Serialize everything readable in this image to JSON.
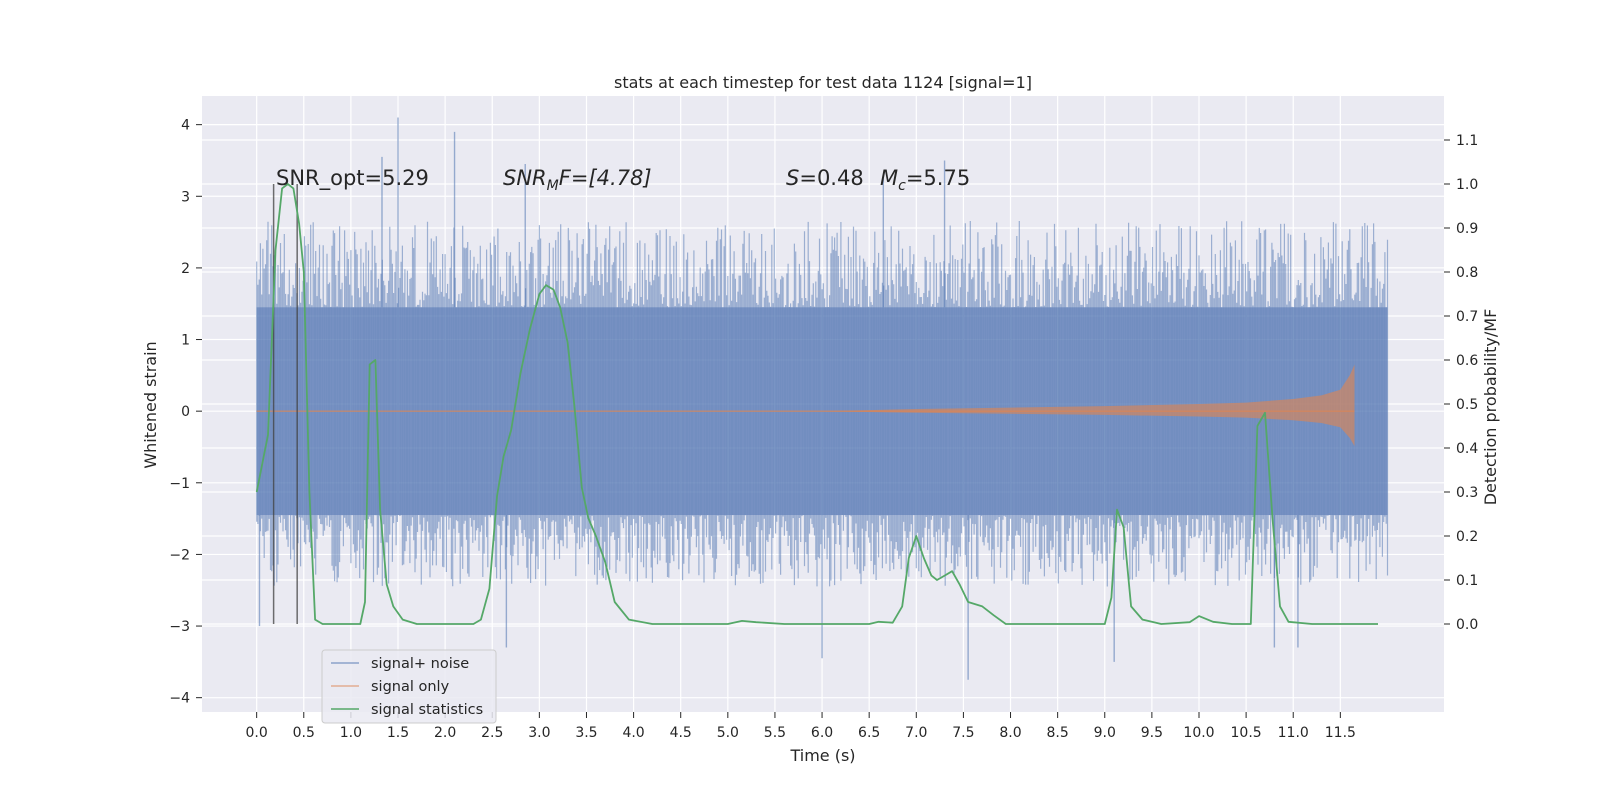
{
  "chart_data": {
    "type": "line",
    "title": "stats at each timestep for test data 1124 [signal=1]",
    "xlabel": "Time (s)",
    "ylabel": "Whitened strain",
    "ylabel_right": "Detection probability/MF",
    "xlim": [
      -0.58,
      12.6
    ],
    "ylim": [
      -4.2,
      4.4
    ],
    "ylim_right": [
      -0.2,
      1.2
    ],
    "xticks": [
      "0.0",
      "0.5",
      "1.0",
      "1.5",
      "2.0",
      "2.5",
      "3.0",
      "3.5",
      "4.0",
      "4.5",
      "5.0",
      "5.5",
      "6.0",
      "6.5",
      "7.0",
      "7.5",
      "8.0",
      "8.5",
      "9.0",
      "9.5",
      "10.0",
      "10.5",
      "11.0",
      "11.5"
    ],
    "yticks": [
      "4",
      "3",
      "2",
      "1",
      "0",
      "−1",
      "−2",
      "−3",
      "−4"
    ],
    "yticks_right": [
      "1.1",
      "1.0",
      "0.9",
      "0.8",
      "0.7",
      "0.6",
      "0.5",
      "0.4",
      "0.3",
      "0.2",
      "0.1",
      "0.0"
    ],
    "grid": true,
    "legend_position": "lower-left",
    "annotations": {
      "snr_opt": "SNR_opt=5.29",
      "snr_mf": "SNR",
      "snr_mf_sub": "M",
      "snr_mf_tail": "F=[4.78]",
      "s_label": "S",
      "s_value": "=0.48",
      "mc_label": "M",
      "mc_sub": "c",
      "mc_value": "=5.75"
    },
    "markers_x": [
      0.18,
      0.43
    ],
    "series": [
      {
        "name": "signal+ noise",
        "color": "#4c72b0",
        "x_range": [
          0.0,
          12.0
        ],
        "band_core": [
          -1.45,
          1.45
        ],
        "typical_extremes": [
          -2.4,
          2.6
        ],
        "notable_peaks": [
          {
            "x": 1.5,
            "y": 4.1
          },
          {
            "x": 1.33,
            "y": 3.55
          },
          {
            "x": 2.1,
            "y": 3.9
          },
          {
            "x": 2.85,
            "y": 3.45
          },
          {
            "x": 7.3,
            "y": 3.5
          },
          {
            "x": 6.65,
            "y": 3.25
          },
          {
            "x": 2.65,
            "y": -3.3
          },
          {
            "x": 7.55,
            "y": -3.75
          },
          {
            "x": 6.0,
            "y": -3.45
          },
          {
            "x": 9.1,
            "y": -3.5
          },
          {
            "x": 0.03,
            "y": -3.0
          },
          {
            "x": 10.8,
            "y": -3.3
          },
          {
            "x": 11.05,
            "y": -3.3
          }
        ]
      },
      {
        "name": "signal only",
        "color": "#dd8452",
        "x_range": [
          0.0,
          11.65
        ],
        "envelope": [
          {
            "x": 0.0,
            "y": 0.0
          },
          {
            "x": 5.0,
            "y": 0.0
          },
          {
            "x": 6.0,
            "y": 0.0
          },
          {
            "x": 7.0,
            "y": 0.03
          },
          {
            "x": 8.0,
            "y": 0.05
          },
          {
            "x": 9.0,
            "y": 0.07
          },
          {
            "x": 10.0,
            "y": 0.1
          },
          {
            "x": 10.5,
            "y": 0.12
          },
          {
            "x": 11.0,
            "y": 0.17
          },
          {
            "x": 11.3,
            "y": 0.22
          },
          {
            "x": 11.5,
            "y": 0.3
          },
          {
            "x": 11.6,
            "y": 0.5
          },
          {
            "x": 11.65,
            "y": 0.65
          }
        ]
      },
      {
        "name": "signal statistics",
        "color": "#55a868",
        "axis": "right",
        "points": [
          {
            "x": 0.0,
            "y": 0.3
          },
          {
            "x": 0.12,
            "y": 0.43
          },
          {
            "x": 0.2,
            "y": 0.85
          },
          {
            "x": 0.27,
            "y": 0.99
          },
          {
            "x": 0.33,
            "y": 1.0
          },
          {
            "x": 0.39,
            "y": 0.99
          },
          {
            "x": 0.45,
            "y": 0.91
          },
          {
            "x": 0.5,
            "y": 0.8
          },
          {
            "x": 0.56,
            "y": 0.3
          },
          {
            "x": 0.62,
            "y": 0.01
          },
          {
            "x": 0.7,
            "y": 0.0
          },
          {
            "x": 1.1,
            "y": 0.0
          },
          {
            "x": 1.15,
            "y": 0.05
          },
          {
            "x": 1.2,
            "y": 0.59
          },
          {
            "x": 1.26,
            "y": 0.6
          },
          {
            "x": 1.31,
            "y": 0.26
          },
          {
            "x": 1.38,
            "y": 0.09
          },
          {
            "x": 1.45,
            "y": 0.04
          },
          {
            "x": 1.55,
            "y": 0.01
          },
          {
            "x": 1.7,
            "y": 0.0
          },
          {
            "x": 2.3,
            "y": 0.0
          },
          {
            "x": 2.38,
            "y": 0.01
          },
          {
            "x": 2.47,
            "y": 0.08
          },
          {
            "x": 2.55,
            "y": 0.29
          },
          {
            "x": 2.62,
            "y": 0.38
          },
          {
            "x": 2.7,
            "y": 0.44
          },
          {
            "x": 2.8,
            "y": 0.57
          },
          {
            "x": 2.9,
            "y": 0.67
          },
          {
            "x": 3.0,
            "y": 0.75
          },
          {
            "x": 3.07,
            "y": 0.77
          },
          {
            "x": 3.15,
            "y": 0.76
          },
          {
            "x": 3.22,
            "y": 0.72
          },
          {
            "x": 3.3,
            "y": 0.64
          },
          {
            "x": 3.37,
            "y": 0.5
          },
          {
            "x": 3.45,
            "y": 0.31
          },
          {
            "x": 3.52,
            "y": 0.24
          },
          {
            "x": 3.6,
            "y": 0.2
          },
          {
            "x": 3.7,
            "y": 0.14
          },
          {
            "x": 3.8,
            "y": 0.05
          },
          {
            "x": 3.95,
            "y": 0.01
          },
          {
            "x": 4.2,
            "y": 0.0
          },
          {
            "x": 5.0,
            "y": 0.0
          },
          {
            "x": 5.15,
            "y": 0.007
          },
          {
            "x": 5.3,
            "y": 0.004
          },
          {
            "x": 5.6,
            "y": 0.0
          },
          {
            "x": 6.5,
            "y": 0.0
          },
          {
            "x": 6.6,
            "y": 0.005
          },
          {
            "x": 6.75,
            "y": 0.003
          },
          {
            "x": 6.85,
            "y": 0.04
          },
          {
            "x": 6.92,
            "y": 0.15
          },
          {
            "x": 7.0,
            "y": 0.2
          },
          {
            "x": 7.08,
            "y": 0.15
          },
          {
            "x": 7.16,
            "y": 0.11
          },
          {
            "x": 7.22,
            "y": 0.1
          },
          {
            "x": 7.3,
            "y": 0.11
          },
          {
            "x": 7.38,
            "y": 0.12
          },
          {
            "x": 7.46,
            "y": 0.09
          },
          {
            "x": 7.55,
            "y": 0.05
          },
          {
            "x": 7.7,
            "y": 0.04
          },
          {
            "x": 7.82,
            "y": 0.02
          },
          {
            "x": 7.95,
            "y": 0.0
          },
          {
            "x": 9.0,
            "y": 0.0
          },
          {
            "x": 9.07,
            "y": 0.06
          },
          {
            "x": 9.13,
            "y": 0.26
          },
          {
            "x": 9.2,
            "y": 0.22
          },
          {
            "x": 9.28,
            "y": 0.04
          },
          {
            "x": 9.4,
            "y": 0.01
          },
          {
            "x": 9.6,
            "y": 0.0
          },
          {
            "x": 9.9,
            "y": 0.004
          },
          {
            "x": 10.0,
            "y": 0.018
          },
          {
            "x": 10.15,
            "y": 0.005
          },
          {
            "x": 10.35,
            "y": 0.0
          },
          {
            "x": 10.55,
            "y": 0.0
          },
          {
            "x": 10.62,
            "y": 0.45
          },
          {
            "x": 10.7,
            "y": 0.48
          },
          {
            "x": 10.78,
            "y": 0.24
          },
          {
            "x": 10.86,
            "y": 0.04
          },
          {
            "x": 10.95,
            "y": 0.005
          },
          {
            "x": 11.2,
            "y": 0.0
          },
          {
            "x": 11.9,
            "y": 0.0
          }
        ]
      }
    ]
  }
}
